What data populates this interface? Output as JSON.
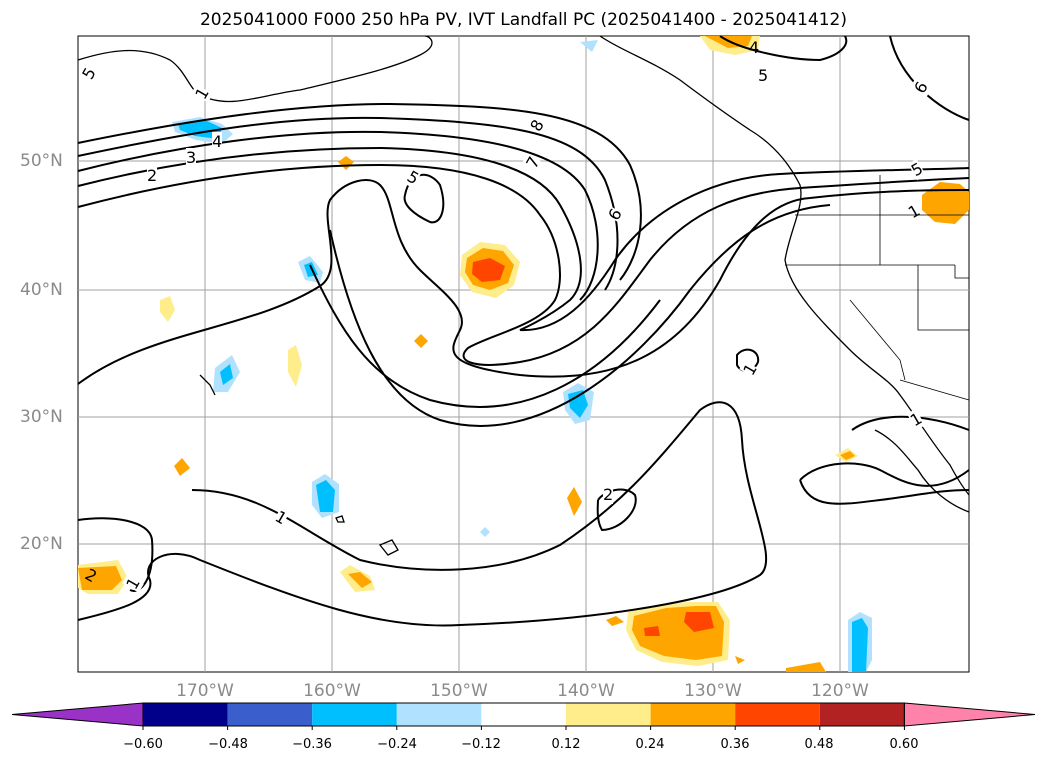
{
  "title": "2025041000 F000 250 hPa PV, IVT Landfall PC (2025041400 - 2025041412)",
  "lat_labels": [
    "50°N",
    "40°N",
    "30°N",
    "20°N"
  ],
  "lon_labels": [
    "170°W",
    "160°W",
    "150°W",
    "140°W",
    "130°W",
    "120°W"
  ],
  "contour_labels": [
    "5",
    "1",
    "4",
    "3",
    "2",
    "5",
    "8",
    "7",
    "6",
    "4",
    "5",
    "6",
    "5",
    "1",
    "1",
    "1",
    "2",
    "1",
    "1",
    "2"
  ],
  "colorbar": {
    "ticks": [
      "−0.60",
      "−0.48",
      "−0.36",
      "−0.24",
      "−0.12",
      "0.12",
      "0.24",
      "0.36",
      "0.48",
      "0.60"
    ],
    "colors": [
      "#9b32c8",
      "#00008b",
      "#3a5fcd",
      "#00bfff",
      "#b0e2ff",
      "#ffffff",
      "#ffec8b",
      "#ffa500",
      "#ff4500",
      "#b22222",
      "#ff82ab"
    ]
  },
  "colors": {
    "gridline": "#a0a0a0",
    "tick_label": "#8a8a8a",
    "contour": "#000000"
  }
}
